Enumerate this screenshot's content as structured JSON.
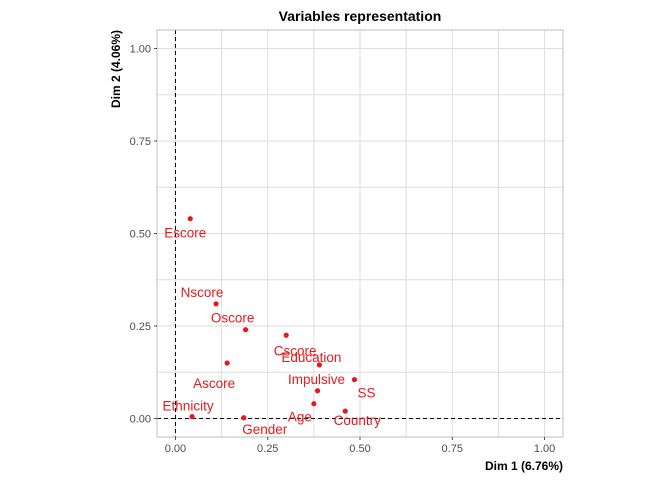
{
  "chart_data": {
    "type": "scatter",
    "title": "Variables representation",
    "xlabel": "Dim 1 (6.76%)",
    "ylabel": "Dim 2 (4.06%)",
    "xlim": [
      -0.05,
      1.05
    ],
    "ylim": [
      -0.05,
      1.05
    ],
    "xticks": [
      "0.00",
      "0.25",
      "0.50",
      "0.75",
      "1.00"
    ],
    "yticks": [
      "0.00",
      "0.25",
      "0.50",
      "0.75",
      "1.00"
    ],
    "grid": true,
    "reference_lines": {
      "x": 0,
      "y": 0,
      "style": "dashed"
    },
    "point_color": "#e41a1c",
    "points": [
      {
        "label": "Escore",
        "x": 0.04,
        "y": 0.54
      },
      {
        "label": "Nscore",
        "x": 0.11,
        "y": 0.31
      },
      {
        "label": "Oscore",
        "x": 0.19,
        "y": 0.24
      },
      {
        "label": "Cscore",
        "x": 0.3,
        "y": 0.225
      },
      {
        "label": "Education",
        "x": 0.39,
        "y": 0.145
      },
      {
        "label": "Ascore",
        "x": 0.14,
        "y": 0.15
      },
      {
        "label": "Impulsive",
        "x": 0.385,
        "y": 0.075
      },
      {
        "label": "SS",
        "x": 0.485,
        "y": 0.105
      },
      {
        "label": "Ethnicity",
        "x": 0.045,
        "y": 0.005
      },
      {
        "label": "Gender",
        "x": 0.185,
        "y": 0.002
      },
      {
        "label": "Age",
        "x": 0.375,
        "y": 0.04
      },
      {
        "label": "Country",
        "x": 0.46,
        "y": 0.02
      }
    ]
  }
}
